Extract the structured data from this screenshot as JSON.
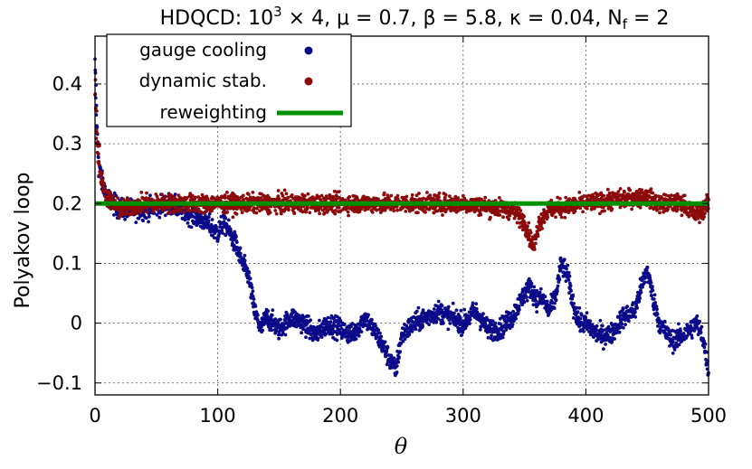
{
  "chart_data": {
    "type": "scatter",
    "title_parts": {
      "prefix": "HDQCD: 10",
      "exp": "3",
      "rest": " × 4, μ = 0.7, β = 5.8, κ = 0.04, N",
      "sub": "f",
      "tail": " = 2"
    },
    "xlabel": "θ",
    "ylabel": "Polyakov loop",
    "xlim": [
      0,
      500
    ],
    "ylim": [
      -0.12,
      0.48
    ],
    "x_ticks": [
      0,
      100,
      200,
      300,
      400,
      500
    ],
    "y_ticks": [
      -0.1,
      0,
      0.1,
      0.2,
      0.3,
      0.4
    ],
    "y_tick_labels": [
      "−0.1",
      "0",
      "0.1",
      "0.2",
      "0.3",
      "0.4"
    ],
    "grid": true,
    "legend_position": "top-left",
    "series": [
      {
        "name": "gauge cooling",
        "color": "#0b0b8a",
        "style": "points",
        "anchors_x": [
          0,
          2,
          5,
          10,
          20,
          40,
          60,
          80,
          90,
          100,
          105,
          110,
          115,
          120,
          125,
          130,
          135,
          140,
          150,
          160,
          170,
          180,
          190,
          200,
          210,
          220,
          230,
          240,
          245,
          250,
          260,
          270,
          280,
          290,
          300,
          310,
          320,
          330,
          340,
          345,
          350,
          355,
          360,
          365,
          370,
          375,
          380,
          385,
          390,
          395,
          400,
          410,
          420,
          430,
          440,
          445,
          450,
          455,
          460,
          470,
          480,
          490,
          495,
          500
        ],
        "anchors_y": [
          0.42,
          0.3,
          0.24,
          0.21,
          0.19,
          0.19,
          0.2,
          0.18,
          0.17,
          0.15,
          0.17,
          0.15,
          0.13,
          0.1,
          0.08,
          0.02,
          -0.01,
          0.01,
          -0.01,
          0.01,
          0.0,
          -0.02,
          0.0,
          -0.01,
          -0.02,
          0.01,
          -0.02,
          -0.06,
          -0.08,
          -0.02,
          0.0,
          0.01,
          0.02,
          0.01,
          0.0,
          0.02,
          -0.01,
          -0.01,
          0.01,
          0.03,
          0.05,
          0.06,
          0.04,
          0.04,
          0.02,
          0.04,
          0.1,
          0.08,
          0.03,
          0.0,
          0.0,
          -0.02,
          -0.02,
          0.01,
          0.02,
          0.06,
          0.09,
          0.04,
          0.0,
          -0.03,
          -0.02,
          0.0,
          -0.02,
          -0.08
        ],
        "noise": 0.017
      },
      {
        "name": "dynamic stab.",
        "color": "#8c0a0a",
        "style": "points",
        "anchors_x": [
          0,
          2,
          5,
          10,
          20,
          40,
          60,
          80,
          100,
          150,
          200,
          250,
          300,
          340,
          350,
          355,
          358,
          362,
          370,
          400,
          440,
          450,
          460,
          480,
          490,
          495,
          500
        ],
        "anchors_y": [
          0.4,
          0.3,
          0.24,
          0.21,
          0.19,
          0.2,
          0.2,
          0.2,
          0.2,
          0.2,
          0.2,
          0.2,
          0.2,
          0.19,
          0.17,
          0.14,
          0.13,
          0.17,
          0.19,
          0.2,
          0.21,
          0.21,
          0.2,
          0.2,
          0.18,
          0.19,
          0.2
        ],
        "noise": 0.015
      },
      {
        "name": "reweighting",
        "color": "#009100",
        "style": "line",
        "x": [
          0,
          500
        ],
        "y": [
          0.2,
          0.2
        ]
      }
    ]
  }
}
